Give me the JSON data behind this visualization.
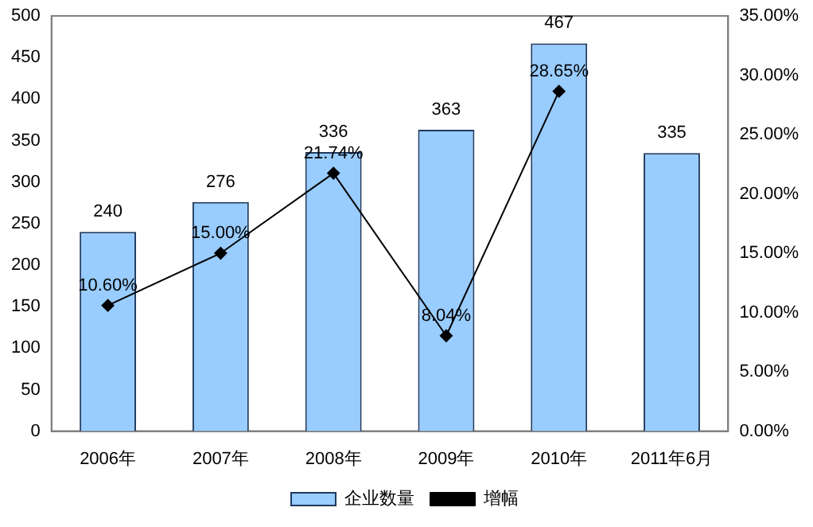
{
  "chart_data": {
    "type": "bar",
    "categories": [
      "2006年",
      "2007年",
      "2008年",
      "2009年",
      "2010年",
      "2011年6月"
    ],
    "series": [
      {
        "name": "企业数量",
        "color": "#99ccff",
        "values": [
          240,
          276,
          336,
          363,
          467,
          335
        ],
        "value_labels": [
          "240",
          "276",
          "336",
          "363",
          "467",
          "335"
        ]
      },
      {
        "name": "增幅",
        "type": "line",
        "color": "#000000",
        "axis": "y2",
        "marker": "diamond",
        "values": [
          10.6,
          15.0,
          21.74,
          8.04,
          28.65,
          null
        ],
        "value_labels": [
          "10.60%",
          "15.00%",
          "21.74%",
          "8.04%",
          "28.65%",
          null
        ]
      }
    ],
    "ylim": [
      0,
      500
    ],
    "yticks": [
      0,
      50,
      100,
      150,
      200,
      250,
      300,
      350,
      400,
      450,
      500
    ],
    "y2lim": [
      0,
      35
    ],
    "y2ticks": [
      {
        "value": 0,
        "label": "0.00%"
      },
      {
        "value": 5,
        "label": "5.00%"
      },
      {
        "value": 10,
        "label": "10.00%"
      },
      {
        "value": 15,
        "label": "15.00%"
      },
      {
        "value": 20,
        "label": "20.00%"
      },
      {
        "value": 25,
        "label": "25.00%"
      },
      {
        "value": 30,
        "label": "30.00%"
      },
      {
        "value": 35,
        "label": "35.00%"
      }
    ],
    "grid": false,
    "legend": "bottom"
  }
}
